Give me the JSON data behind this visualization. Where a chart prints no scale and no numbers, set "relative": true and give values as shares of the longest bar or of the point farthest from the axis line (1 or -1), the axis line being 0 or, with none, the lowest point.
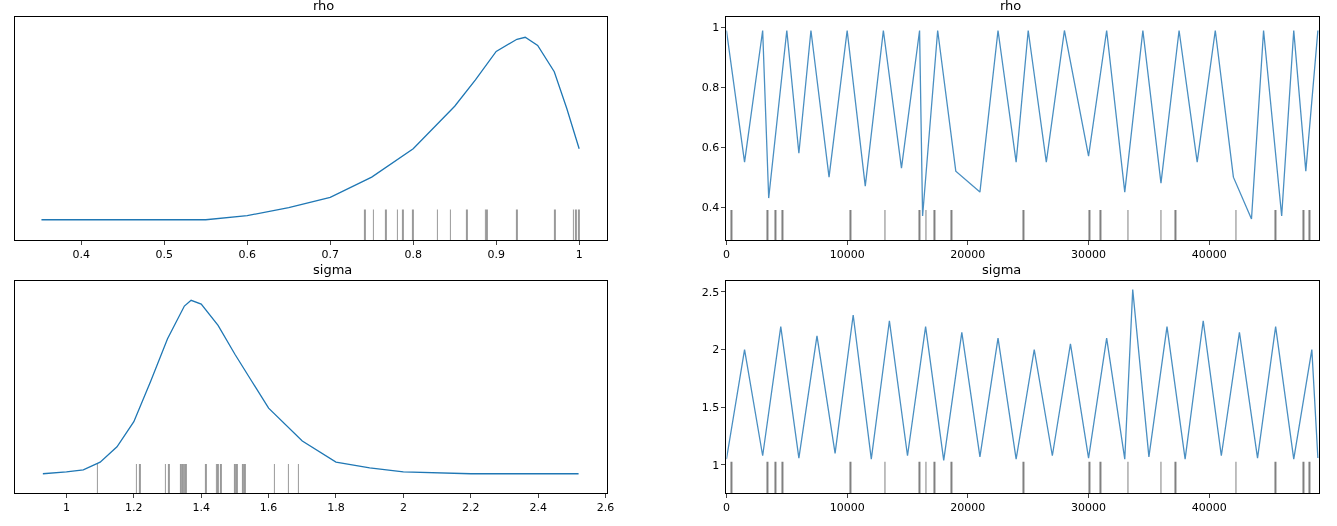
{
  "chart_data": [
    {
      "type": "line",
      "title": "rho",
      "relative": true,
      "xlim": [
        0.32,
        1.033
      ],
      "xticks": [
        0.4,
        0.5,
        0.6,
        0.7,
        0.8,
        0.9,
        1.0
      ],
      "tick_labels": "x",
      "series": [
        {
          "color": "#1f77b4",
          "x": [
            0.352,
            0.55,
            0.6,
            0.65,
            0.7,
            0.75,
            0.8,
            0.85,
            0.875,
            0.9,
            0.925,
            0.935,
            0.95,
            0.97,
            0.985,
            1.0
          ],
          "values": [
            0.1,
            0.1,
            0.12,
            0.16,
            0.21,
            0.31,
            0.45,
            0.66,
            0.79,
            0.93,
            0.99,
            1.0,
            0.96,
            0.83,
            0.65,
            0.45
          ]
        },
        {
          "type": "bar",
          "color": "#999999",
          "x": [
            0.742,
            0.752,
            0.767,
            0.781,
            0.788,
            0.8,
            0.829,
            0.845,
            0.865,
            0.887,
            0.889,
            0.925,
            0.971,
            0.993,
            0.996,
            1.0
          ],
          "values": [
            0.15,
            0.15,
            0.15,
            0.15,
            0.15,
            0.15,
            0.15,
            0.15,
            0.15,
            0.15,
            0.15,
            0.15,
            0.15,
            0.15,
            0.15,
            0.15
          ]
        }
      ]
    },
    {
      "type": "line",
      "title": "rho",
      "xlim": [
        0,
        49100
      ],
      "xticks": [
        0,
        10000,
        20000,
        30000,
        40000
      ],
      "ylim": [
        0.29,
        1.035
      ],
      "yticks": [
        0.4,
        0.6,
        0.8,
        1.0
      ],
      "series": [
        {
          "color": "#4a8fc2",
          "x": [
            0,
            1500,
            3000,
            3500,
            5000,
            6000,
            7000,
            8500,
            10000,
            11500,
            13000,
            14500,
            16000,
            16250,
            17500,
            19000,
            21000,
            22500,
            24000,
            25000,
            26500,
            28000,
            30000,
            31500,
            33000,
            34500,
            36000,
            37500,
            39000,
            40500,
            42000,
            43500,
            44500,
            46000,
            47000,
            48000,
            49000
          ],
          "values": [
            0.99,
            0.55,
            0.99,
            0.43,
            0.99,
            0.58,
            0.99,
            0.5,
            0.99,
            0.47,
            0.99,
            0.53,
            0.99,
            0.37,
            0.99,
            0.52,
            0.45,
            0.99,
            0.55,
            0.99,
            0.55,
            0.99,
            0.57,
            0.99,
            0.45,
            0.99,
            0.48,
            0.99,
            0.55,
            0.99,
            0.5,
            0.36,
            0.99,
            0.37,
            0.99,
            0.52,
            0.99
          ]
        },
        {
          "type": "bar",
          "color": "#808080",
          "x": [
            400,
            3400,
            4060,
            4650,
            10260,
            13130,
            16000,
            16530,
            17230,
            18650,
            24620,
            30070,
            30990,
            33270,
            36010,
            37190,
            42210,
            45480,
            47820,
            48280
          ],
          "base": [
            0.29,
            0.29,
            0.29,
            0.29,
            0.29,
            0.29,
            0.29,
            0.29,
            0.29,
            0.29,
            0.29,
            0.29,
            0.29,
            0.29,
            0.29,
            0.29,
            0.29,
            0.29,
            0.29,
            0.29
          ],
          "values": [
            0.1,
            0.1,
            0.1,
            0.1,
            0.1,
            0.1,
            0.1,
            0.1,
            0.1,
            0.1,
            0.1,
            0.1,
            0.1,
            0.1,
            0.1,
            0.1,
            0.1,
            0.1,
            0.1,
            0.1
          ]
        }
      ]
    },
    {
      "type": "line",
      "title": "sigma",
      "relative": true,
      "xlim": [
        0.847,
        2.603
      ],
      "xticks": [
        1.0,
        1.2,
        1.4,
        1.6,
        1.8,
        2.0,
        2.2,
        2.4,
        2.6
      ],
      "tick_labels": "x",
      "series": [
        {
          "color": "#1f77b4",
          "x": [
            0.93,
            1.0,
            1.05,
            1.1,
            1.15,
            1.2,
            1.25,
            1.3,
            1.35,
            1.37,
            1.4,
            1.45,
            1.5,
            1.55,
            1.6,
            1.7,
            1.8,
            1.9,
            2.0,
            2.2,
            2.52
          ],
          "values": [
            0.1,
            0.11,
            0.12,
            0.16,
            0.24,
            0.37,
            0.58,
            0.8,
            0.97,
            1.0,
            0.98,
            0.87,
            0.72,
            0.58,
            0.44,
            0.27,
            0.16,
            0.13,
            0.11,
            0.1,
            0.1
          ]
        },
        {
          "type": "bar",
          "color": "#999999",
          "x": [
            1.092,
            1.208,
            1.218,
            1.294,
            1.304,
            1.34,
            1.346,
            1.35,
            1.354,
            1.414,
            1.445,
            1.45,
            1.459,
            1.499,
            1.506,
            1.524,
            1.529,
            1.617,
            1.659,
            1.688
          ],
          "values": [
            0.15,
            0.15,
            0.15,
            0.15,
            0.15,
            0.15,
            0.15,
            0.15,
            0.15,
            0.15,
            0.15,
            0.15,
            0.15,
            0.15,
            0.15,
            0.15,
            0.15,
            0.15,
            0.15,
            0.15
          ]
        }
      ]
    },
    {
      "type": "line",
      "title": "sigma",
      "xlim": [
        0,
        49100
      ],
      "xticks": [
        0,
        10000,
        20000,
        30000,
        40000
      ],
      "ylim": [
        0.757,
        2.595
      ],
      "yticks": [
        1.0,
        1.5,
        2.0,
        2.5
      ],
      "series": [
        {
          "color": "#4a8fc2",
          "x": [
            0,
            1500,
            3000,
            4500,
            6000,
            7500,
            9000,
            10500,
            12000,
            13500,
            15000,
            16500,
            18000,
            19500,
            21000,
            22500,
            24000,
            25500,
            27000,
            28500,
            30000,
            31500,
            33000,
            33660,
            35000,
            36500,
            38000,
            39500,
            41000,
            42500,
            44000,
            45500,
            47000,
            48500,
            49000
          ],
          "values": [
            1.05,
            2.0,
            1.08,
            2.2,
            1.06,
            2.12,
            1.1,
            2.3,
            1.05,
            2.25,
            1.08,
            2.2,
            1.04,
            2.15,
            1.07,
            2.1,
            1.05,
            2.0,
            1.08,
            2.05,
            1.06,
            2.1,
            1.05,
            2.52,
            1.07,
            2.2,
            1.05,
            2.25,
            1.08,
            2.15,
            1.06,
            2.2,
            1.05,
            2.0,
            1.06
          ]
        },
        {
          "type": "bar",
          "color": "#808080",
          "x": [
            400,
            3400,
            4060,
            4650,
            10260,
            13130,
            16000,
            16530,
            17230,
            18650,
            24620,
            30070,
            30990,
            33270,
            36010,
            37190,
            42210,
            45480,
            47820,
            48280
          ],
          "base": [
            0.757,
            0.757,
            0.757,
            0.757,
            0.757,
            0.757,
            0.757,
            0.757,
            0.757,
            0.757,
            0.757,
            0.757,
            0.757,
            0.757,
            0.757,
            0.757,
            0.757,
            0.757,
            0.757,
            0.757
          ],
          "values": [
            0.27,
            0.27,
            0.27,
            0.27,
            0.27,
            0.27,
            0.27,
            0.27,
            0.27,
            0.27,
            0.27,
            0.27,
            0.27,
            0.27,
            0.27,
            0.27,
            0.27,
            0.27,
            0.27,
            0.27
          ]
        }
      ]
    }
  ]
}
